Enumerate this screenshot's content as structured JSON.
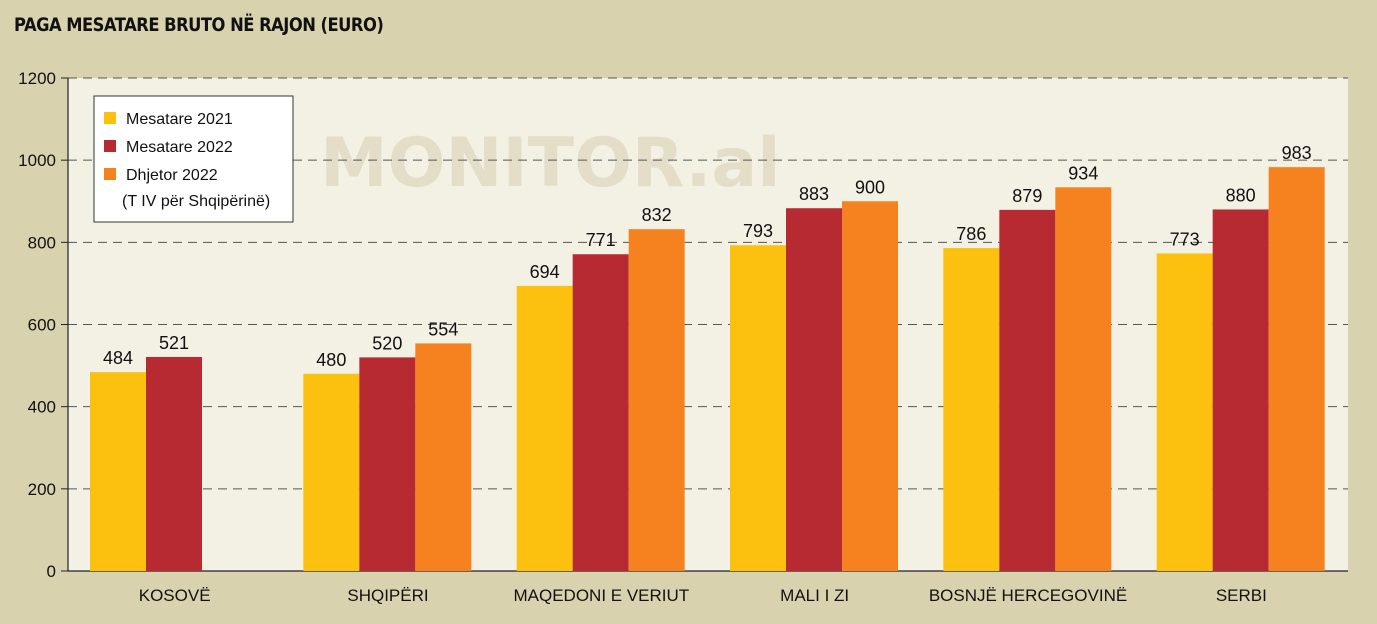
{
  "chart_data": {
    "type": "bar",
    "title": "PAGA MESATARE BRUTO NË RAJON (EURO)",
    "watermark": "MONITOR.al",
    "categories": [
      "KOSOVË",
      "SHQIPËRI",
      "MAQEDONI E VERIUT",
      "MALI I ZI",
      "BOSNJË HERCEGOVINË",
      "SERBI"
    ],
    "series": [
      {
        "name": "Mesatare 2021",
        "color": "#fcc10f",
        "values": [
          484,
          480,
          694,
          793,
          786,
          773
        ]
      },
      {
        "name": "Mesatare 2022",
        "color": "#b82a31",
        "values": [
          521,
          520,
          771,
          883,
          879,
          880
        ]
      },
      {
        "name": "Dhjetor 2022",
        "color": "#f5821f",
        "values": [
          null,
          554,
          832,
          900,
          934,
          983
        ]
      }
    ],
    "legend_note": "(T IV për Shqipërinë)",
    "ylim": [
      0,
      1200
    ],
    "yticks": [
      0,
      200,
      400,
      600,
      800,
      1000,
      1200
    ],
    "grid": "dashed horizontal",
    "legend_position": "top-left",
    "plot_background": "#f3f0e4",
    "page_background": "#d9d2ae"
  }
}
